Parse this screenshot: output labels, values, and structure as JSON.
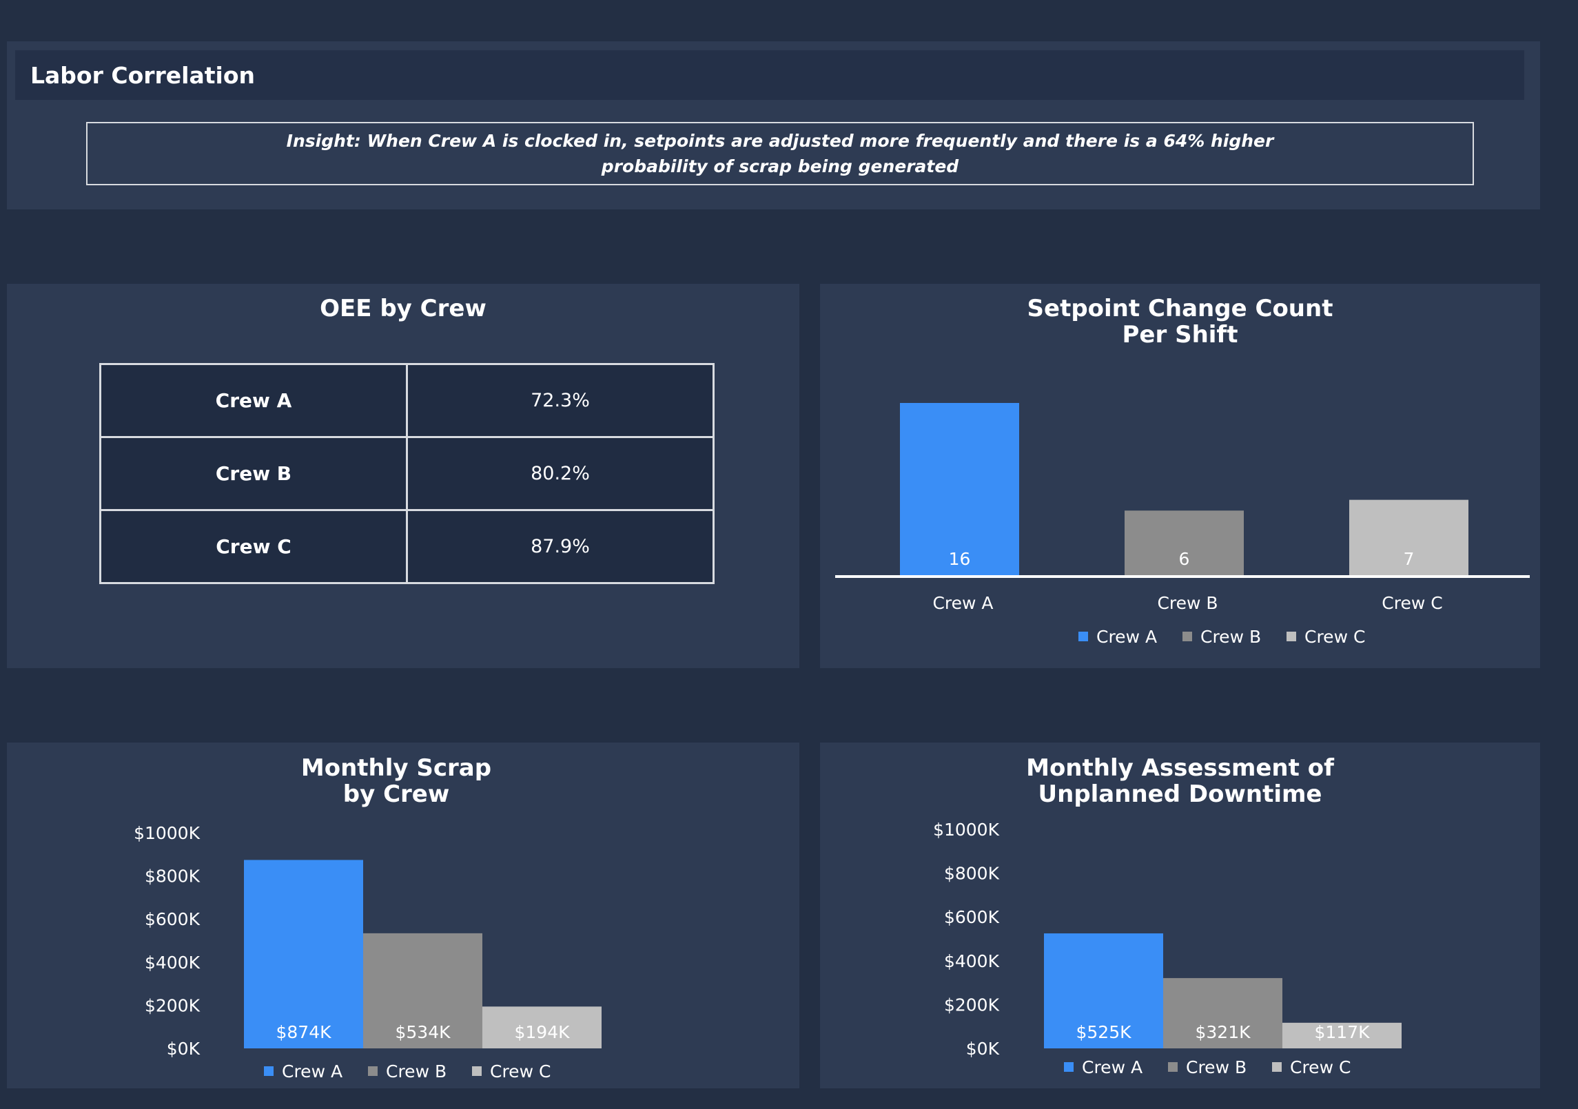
{
  "header": {
    "title": "Labor Correlation",
    "insight": "Insight: When Crew A is clocked in, setpoints are adjusted more frequently and there is a 64% higher probability of scrap being generated"
  },
  "colors": {
    "crew_a": "#3a8ef6",
    "crew_b": "#8c8c8c",
    "crew_c": "#bfbfbf",
    "background": "#232f44",
    "panel": "#2e3b53"
  },
  "oee": {
    "title": "OEE by Crew",
    "rows": [
      {
        "crew": "Crew A",
        "value": "72.3%"
      },
      {
        "crew": "Crew B",
        "value": "80.2%"
      },
      {
        "crew": "Crew C",
        "value": "87.9%"
      }
    ]
  },
  "chart_data": [
    {
      "id": "setpoint",
      "type": "bar",
      "title_lines": [
        "Setpoint Change Count",
        "Per Shift"
      ],
      "categories": [
        "Crew A",
        "Crew B",
        "Crew C"
      ],
      "values": [
        16,
        6,
        7
      ],
      "data_labels": [
        "16",
        "6",
        "7"
      ],
      "ylim": [
        0,
        16
      ],
      "legend": [
        "Crew A",
        "Crew B",
        "Crew C"
      ],
      "legend_position": "bottom",
      "grid": false
    },
    {
      "id": "scrap",
      "type": "bar",
      "title_lines": [
        "Monthly Scrap",
        "by Crew"
      ],
      "categories": [
        "Crew A",
        "Crew B",
        "Crew C"
      ],
      "values": [
        874,
        534,
        194
      ],
      "data_labels": [
        "$874K",
        "$534K",
        "$194K"
      ],
      "ylim": [
        0,
        1000
      ],
      "yticks": [
        0,
        200,
        400,
        600,
        800,
        1000
      ],
      "ytick_labels": [
        "$0K",
        "$200K",
        "$400K",
        "$600K",
        "$800K",
        "$1000K"
      ],
      "legend": [
        "Crew A",
        "Crew B",
        "Crew C"
      ],
      "legend_position": "bottom",
      "grid": false
    },
    {
      "id": "downtime",
      "type": "bar",
      "title_lines": [
        "Monthly Assessment of",
        "Unplanned Downtime"
      ],
      "categories": [
        "Crew A",
        "Crew B",
        "Crew C"
      ],
      "values": [
        525,
        321,
        117
      ],
      "data_labels": [
        "$525K",
        "$321K",
        "$117K"
      ],
      "ylim": [
        0,
        1000
      ],
      "yticks": [
        0,
        200,
        400,
        600,
        800,
        1000
      ],
      "ytick_labels": [
        "$0K",
        "$200K",
        "$400K",
        "$600K",
        "$800K",
        "$1000K"
      ],
      "legend": [
        "Crew A",
        "Crew B",
        "Crew C"
      ],
      "legend_position": "bottom",
      "grid": false
    }
  ]
}
